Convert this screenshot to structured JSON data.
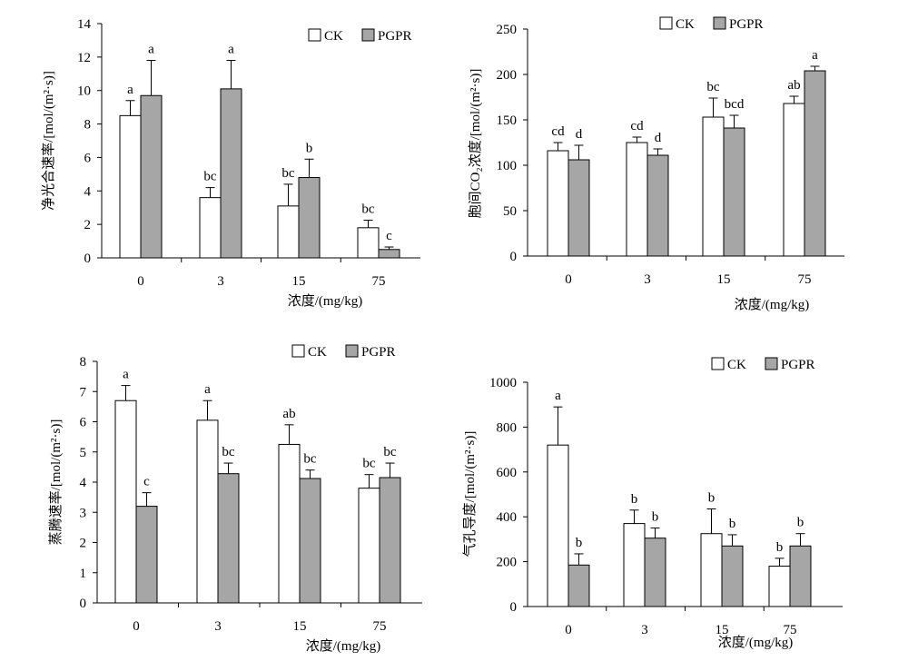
{
  "legend": {
    "ck": "CK",
    "pgpr": "PGPR"
  },
  "colors": {
    "ck": "#ffffff",
    "pgpr": "#a6a6a6",
    "stroke": "#000000"
  },
  "chart_data": [
    {
      "type": "bar",
      "categories": [
        "0",
        "3",
        "15",
        "75"
      ],
      "xlabel": "浓度/(mg/kg)",
      "ylabel": "净光合速率/[mol/(m²·s)]",
      "ylim": [
        0,
        14
      ],
      "yticks": [
        0,
        2,
        4,
        6,
        8,
        10,
        12,
        14
      ],
      "legend_position": "top-right",
      "series": [
        {
          "name": "CK",
          "values": [
            8.5,
            3.6,
            3.1,
            1.8
          ],
          "errors": [
            0.9,
            0.6,
            1.3,
            0.45
          ],
          "labels": [
            "a",
            "bc",
            "bc",
            "bc"
          ]
        },
        {
          "name": "PGPR",
          "values": [
            9.7,
            10.1,
            4.8,
            0.5
          ],
          "errors": [
            2.1,
            1.7,
            1.1,
            0.15
          ],
          "labels": [
            "a",
            "a",
            "b",
            "c"
          ]
        }
      ]
    },
    {
      "type": "bar",
      "categories": [
        "0",
        "3",
        "15",
        "75"
      ],
      "xlabel": "浓度/(mg/kg)",
      "ylabel": "胞间CO₂浓度/[mol/(m²·s)]",
      "ylim": [
        0,
        250
      ],
      "yticks": [
        0,
        50,
        100,
        150,
        200,
        250
      ],
      "legend_position": "top",
      "series": [
        {
          "name": "CK",
          "values": [
            116,
            125,
            153,
            168
          ],
          "errors": [
            9,
            6,
            21,
            8
          ],
          "labels": [
            "cd",
            "cd",
            "bc",
            "ab"
          ]
        },
        {
          "name": "PGPR",
          "values": [
            106,
            111,
            141,
            204
          ],
          "errors": [
            16,
            7,
            14,
            5
          ],
          "labels": [
            "d",
            "d",
            "bcd",
            "a"
          ]
        }
      ]
    },
    {
      "type": "bar",
      "categories": [
        "0",
        "3",
        "15",
        "75"
      ],
      "xlabel": "浓度/(mg/kg)",
      "ylabel": "蒸腾速率/[mol/(m²·s)]",
      "ylim": [
        0,
        8
      ],
      "yticks": [
        0,
        1,
        2,
        3,
        4,
        5,
        6,
        7,
        8
      ],
      "legend_position": "top-right",
      "series": [
        {
          "name": "CK",
          "values": [
            6.7,
            6.05,
            5.25,
            3.8
          ],
          "errors": [
            0.5,
            0.65,
            0.65,
            0.45
          ],
          "labels": [
            "a",
            "a",
            "ab",
            "bc"
          ]
        },
        {
          "name": "PGPR",
          "values": [
            3.2,
            4.28,
            4.12,
            4.15
          ],
          "errors": [
            0.45,
            0.35,
            0.28,
            0.48
          ],
          "labels": [
            "c",
            "bc",
            "bc",
            "bc"
          ]
        }
      ]
    },
    {
      "type": "bar",
      "categories": [
        "0",
        "3",
        "15",
        "75"
      ],
      "xlabel": "浓度/(mg/kg)",
      "ylabel": "气孔导度/[mol/(m²·s)]",
      "ylim": [
        0,
        1000
      ],
      "yticks": [
        0,
        200,
        400,
        600,
        800,
        1000
      ],
      "legend_position": "top-right",
      "series": [
        {
          "name": "CK",
          "values": [
            720,
            370,
            325,
            180
          ],
          "errors": [
            170,
            60,
            110,
            35
          ],
          "labels": [
            "a",
            "b",
            "b",
            "b"
          ]
        },
        {
          "name": "PGPR",
          "values": [
            185,
            305,
            270,
            270
          ],
          "errors": [
            50,
            45,
            50,
            55
          ],
          "labels": [
            "b",
            "b",
            "b",
            "b"
          ]
        }
      ]
    }
  ]
}
